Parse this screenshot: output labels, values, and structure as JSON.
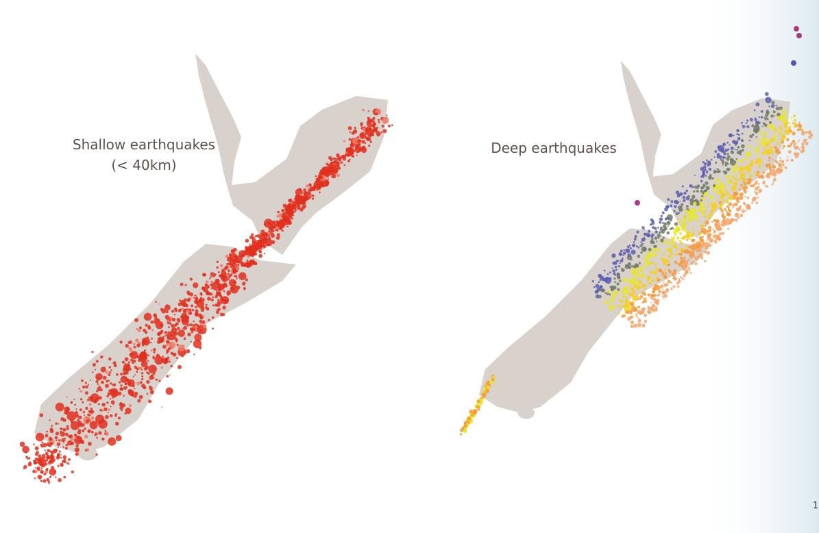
{
  "maps": [
    {
      "title": "Shallow earthquakes",
      "subtitle": "(< 40km)"
    },
    {
      "title": "Deep earthquakes"
    }
  ],
  "page_number": "1"
}
